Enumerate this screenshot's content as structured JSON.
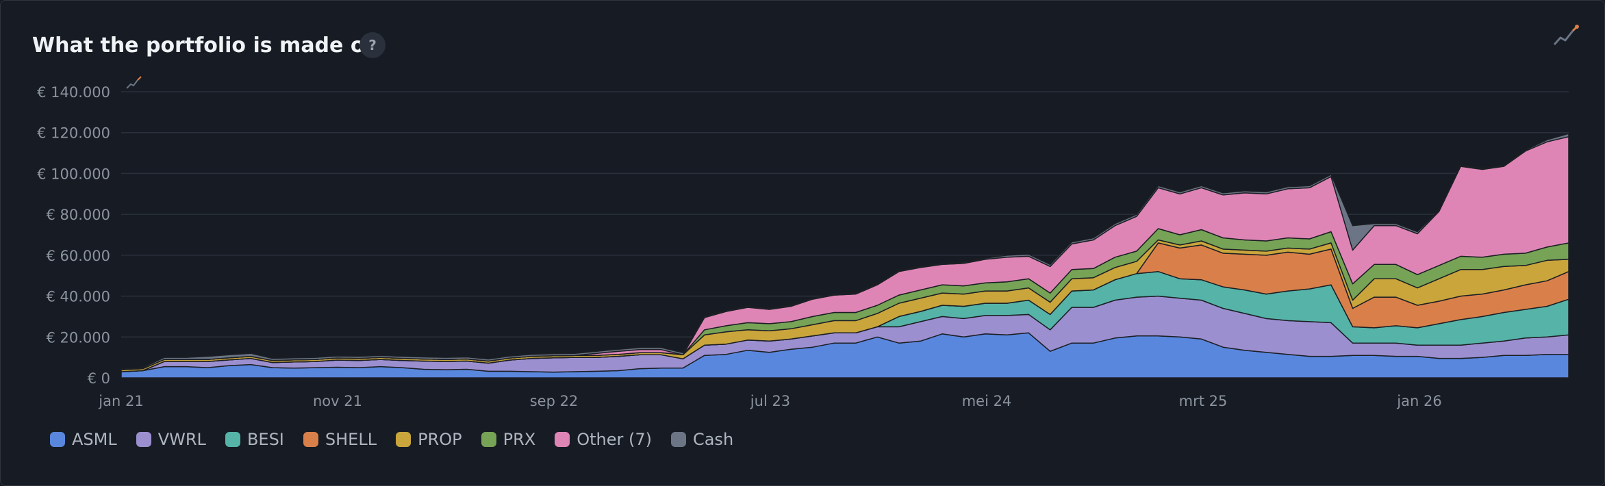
{
  "title": "What the portfolio is made of",
  "help_label": "?",
  "icons": {
    "corner": "trend-chart-icon",
    "small": "trend-chart-icon",
    "help": "help-icon"
  },
  "colors": {
    "background": "#171b23",
    "grid": "#2a313c",
    "axis_text": "#8b949e",
    "series_outline": "#1c1f24"
  },
  "chart_data": {
    "type": "area",
    "stacked": true,
    "y_ticks": [
      "€ 0",
      "€ 20.000",
      "€ 40.000",
      "€ 60.000",
      "€ 80.000",
      "€ 100.000",
      "€ 120.000",
      "€ 140.000"
    ],
    "x_ticks": [
      "jan 21",
      "nov 21",
      "sep 22",
      "jul 23",
      "mei 24",
      "mrt 25",
      "jan 26"
    ],
    "ylim": [
      0,
      140000
    ],
    "grid": true,
    "legend_position": "bottom-left",
    "x": [
      0,
      1,
      2,
      3,
      4,
      5,
      6,
      7,
      8,
      9,
      10,
      11,
      12,
      13,
      14,
      15,
      16,
      17,
      18,
      19,
      20,
      21,
      22,
      23,
      24,
      25,
      26,
      27,
      28,
      29,
      30,
      31,
      32,
      33,
      34,
      35,
      36,
      37,
      38,
      39,
      40,
      41,
      42,
      43,
      44,
      45,
      46,
      47,
      48,
      49,
      50,
      51,
      52,
      53,
      54,
      55,
      56,
      57,
      58,
      59,
      60,
      61,
      62,
      63,
      64,
      65,
      66,
      67
    ],
    "series": [
      {
        "name": "ASML",
        "color": "#5a87de",
        "values": [
          3000,
          3500,
          5500,
          5500,
          5000,
          6000,
          6500,
          5000,
          4800,
          5000,
          5200,
          5000,
          5500,
          5000,
          4200,
          4000,
          4200,
          3200,
          3200,
          3000,
          2800,
          3000,
          3200,
          3500,
          4500,
          4800,
          4800,
          11000,
          11500,
          13500,
          12500,
          14000,
          15000,
          17000,
          17000,
          20000,
          17000,
          18000,
          21500,
          20000,
          21500,
          21000,
          22000,
          13000,
          17000,
          17000,
          19500,
          20500,
          20500,
          20000,
          19000,
          15000,
          13500,
          12500,
          11500,
          10500,
          10500,
          11000,
          11000,
          10500,
          10500,
          9500,
          9500,
          10000,
          11000,
          11000,
          11500,
          11500
        ]
      },
      {
        "name": "VWRL",
        "color": "#9b8fd0",
        "values": [
          0,
          0,
          2500,
          2500,
          3000,
          2800,
          3000,
          2500,
          3000,
          3000,
          3500,
          3500,
          3500,
          3500,
          4000,
          4000,
          4000,
          4000,
          5500,
          6500,
          7000,
          7000,
          6800,
          7000,
          6800,
          6500,
          4500,
          5000,
          5000,
          5000,
          5500,
          5000,
          5500,
          5000,
          5000,
          5000,
          8000,
          9500,
          8500,
          9000,
          9000,
          9500,
          9000,
          10500,
          17500,
          17500,
          18500,
          19000,
          19500,
          19000,
          19000,
          19000,
          18000,
          16500,
          16500,
          17000,
          16500,
          6000,
          6000,
          6500,
          5500,
          6500,
          6500,
          7000,
          7000,
          8500,
          8500,
          9500
        ]
      },
      {
        "name": "BESI",
        "color": "#55b3a8",
        "values": [
          0,
          0,
          0,
          0,
          0,
          0,
          0,
          0,
          0,
          0,
          0,
          0,
          0,
          0,
          0,
          0,
          0,
          0,
          0,
          0,
          0,
          0,
          0,
          0,
          0,
          0,
          0,
          0,
          0,
          0,
          0,
          0,
          0,
          0,
          0,
          0,
          5000,
          5000,
          5500,
          6000,
          6000,
          6000,
          7000,
          7500,
          8000,
          8500,
          10000,
          11500,
          12000,
          9500,
          10000,
          10500,
          11500,
          12000,
          14500,
          16000,
          18500,
          8000,
          7500,
          8500,
          8500,
          10500,
          12500,
          13000,
          14000,
          14000,
          15000,
          17500
        ]
      },
      {
        "name": "SHELL",
        "color": "#d9804a",
        "values": [
          0,
          0,
          0,
          0,
          0,
          0,
          0,
          0,
          0,
          0,
          0,
          0,
          0,
          0,
          0,
          0,
          0,
          0,
          0,
          0,
          0,
          0,
          0,
          0,
          0,
          0,
          0,
          0,
          0,
          0,
          0,
          0,
          0,
          0,
          0,
          0,
          0,
          0,
          0,
          0,
          0,
          0,
          0,
          0,
          0,
          0,
          0,
          0,
          14000,
          15000,
          17000,
          16500,
          17500,
          19000,
          19000,
          17000,
          17500,
          9000,
          15000,
          14000,
          11000,
          11000,
          11500,
          11000,
          11000,
          12000,
          12500,
          13500
        ]
      },
      {
        "name": "PROP",
        "color": "#c9a53c",
        "values": [
          1000,
          1000,
          1000,
          1000,
          1000,
          1000,
          1000,
          1000,
          1000,
          1000,
          1000,
          1000,
          1000,
          1000,
          1000,
          1000,
          1000,
          1000,
          1000,
          1000,
          1000,
          1000,
          1000,
          1000,
          1000,
          1000,
          2000,
          5000,
          6000,
          5000,
          5000,
          5000,
          5500,
          6000,
          6000,
          6500,
          6500,
          6500,
          6000,
          6000,
          6000,
          6000,
          6000,
          6000,
          6000,
          6000,
          6000,
          6000,
          1500,
          1500,
          2000,
          2000,
          2000,
          2000,
          2000,
          2500,
          3000,
          4000,
          9000,
          9000,
          8500,
          11000,
          13000,
          12000,
          11500,
          9500,
          10000,
          6000
        ]
      },
      {
        "name": "PRX",
        "color": "#76a356",
        "values": [
          0,
          0,
          0,
          0,
          0,
          0,
          0,
          0,
          0,
          0,
          0,
          0,
          0,
          0,
          0,
          0,
          0,
          0,
          0,
          0,
          0,
          0,
          0,
          0,
          0,
          0,
          0,
          2500,
          3000,
          3500,
          3500,
          3500,
          4000,
          4000,
          4000,
          4000,
          4000,
          4000,
          4000,
          4000,
          4000,
          4500,
          4500,
          4500,
          4500,
          4500,
          5000,
          5000,
          5500,
          5000,
          5500,
          5500,
          5000,
          5000,
          5000,
          5000,
          5500,
          8000,
          7000,
          7000,
          6500,
          6500,
          6500,
          6000,
          6000,
          6000,
          6500,
          8000
        ]
      },
      {
        "name": "Other (7)",
        "color": "#df85b6",
        "values": [
          0,
          0,
          0,
          0,
          0,
          0,
          0,
          0,
          0,
          0,
          0,
          0,
          0,
          0,
          0,
          0,
          0,
          0,
          0,
          0,
          0,
          0,
          1000,
          1500,
          1500,
          1500,
          0,
          6000,
          7000,
          7500,
          7000,
          7500,
          8500,
          8500,
          9000,
          10000,
          11500,
          11000,
          10000,
          11000,
          11500,
          12000,
          11000,
          13000,
          12500,
          14000,
          15500,
          17000,
          20000,
          20000,
          20500,
          21000,
          23000,
          23000,
          24000,
          25000,
          27000,
          16500,
          19000,
          19000,
          20000,
          26500,
          44000,
          43000,
          43000,
          50000,
          51500,
          52000
        ]
      },
      {
        "name": "Cash",
        "color": "#6b7585",
        "values": [
          500,
          500,
          1000,
          1000,
          1500,
          1500,
          1500,
          1000,
          1000,
          1000,
          1000,
          1000,
          1000,
          1000,
          1000,
          1000,
          1000,
          1000,
          1000,
          1000,
          1000,
          1000,
          1000,
          1000,
          1000,
          1000,
          1000,
          500,
          500,
          500,
          500,
          500,
          500,
          500,
          500,
          500,
          500,
          500,
          500,
          500,
          500,
          1000,
          1000,
          1000,
          1000,
          1000,
          1000,
          1000,
          1000,
          1000,
          1000,
          1000,
          1000,
          1000,
          1000,
          1000,
          1000,
          12000,
          1000,
          1000,
          1000,
          500,
          500,
          500,
          500,
          500,
          1000,
          1500
        ]
      }
    ]
  }
}
